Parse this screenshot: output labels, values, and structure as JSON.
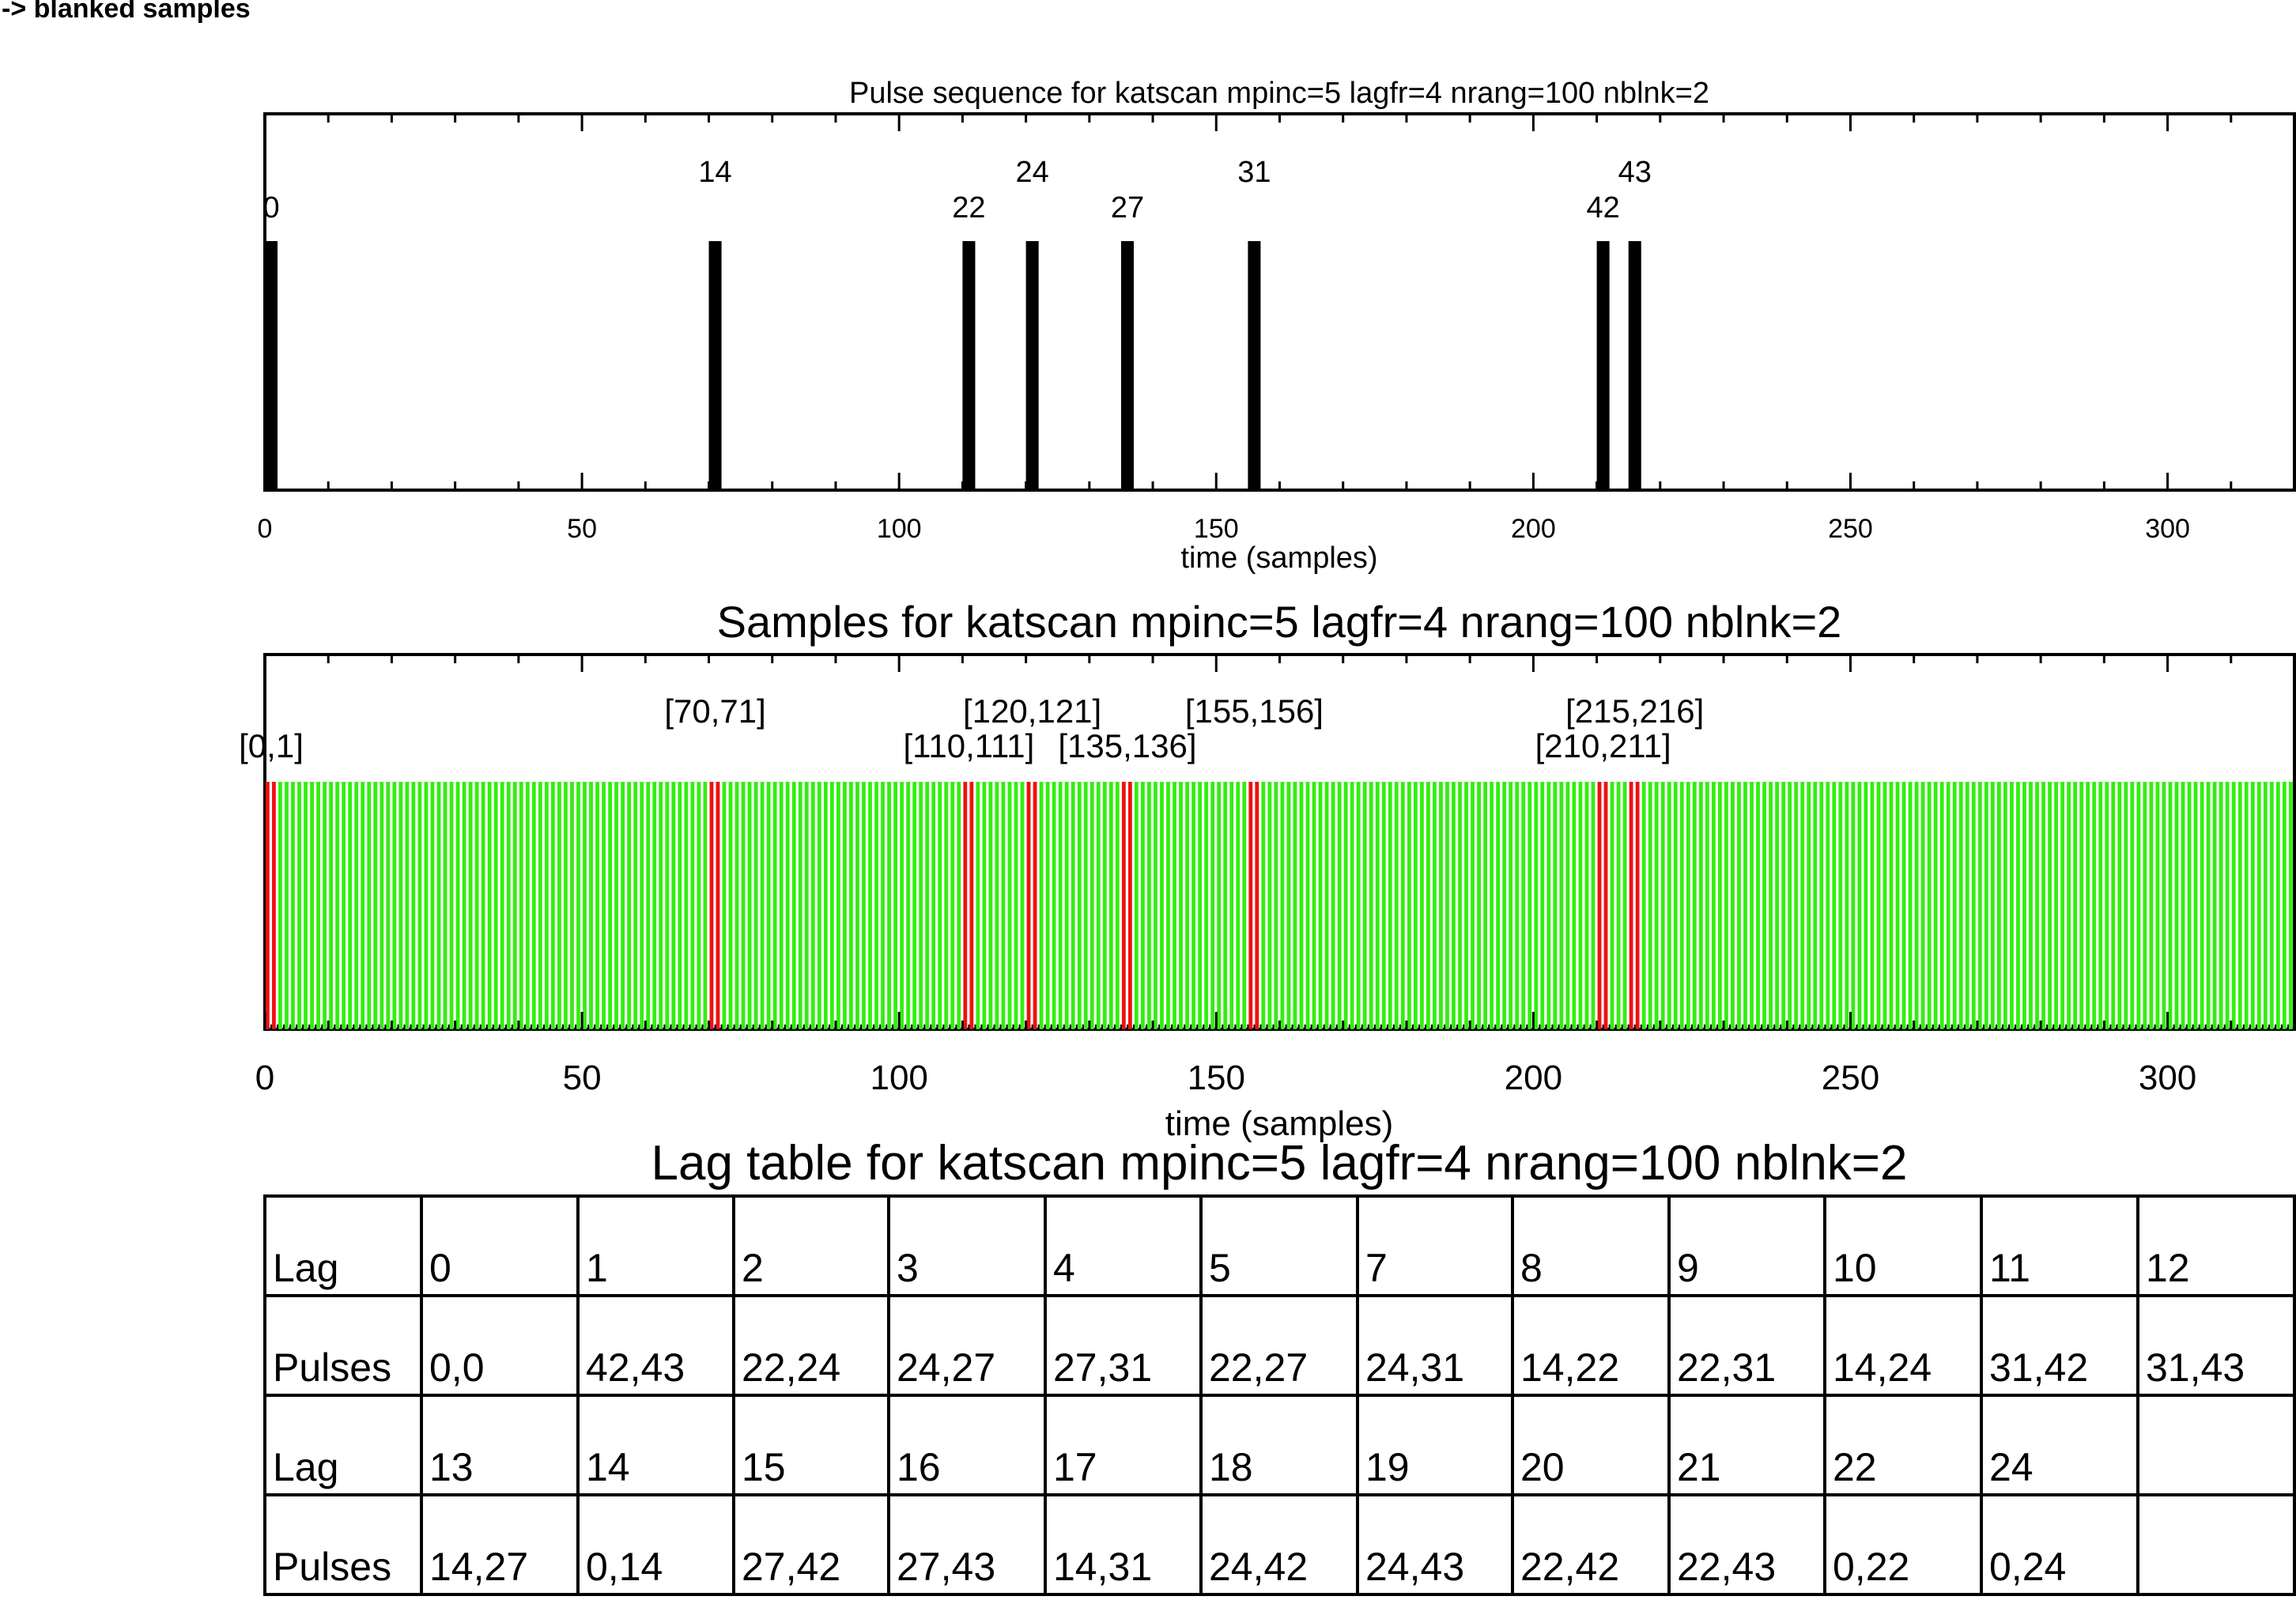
{
  "note": "-> blanked samples",
  "colors": {
    "pulse": "#000000",
    "sample": "#33ee11",
    "blanked": "#ee1111"
  },
  "chart_data": [
    {
      "type": "bar",
      "title": "Pulse sequence for katscan mpinc=5 lagfr=4 nrang=100 nblnk=2",
      "xlabel": "time (samples)",
      "xlim": [
        0,
        320
      ],
      "xticks": [
        0,
        50,
        100,
        150,
        200,
        250,
        300
      ],
      "pulses": [
        0,
        14,
        22,
        24,
        27,
        31,
        42,
        43
      ],
      "pulse_time_samples": [
        0,
        70,
        110,
        120,
        135,
        155,
        210,
        215
      ],
      "pulse_labels": [
        "0",
        "14",
        "22",
        "24",
        "27",
        "31",
        "42",
        "43"
      ],
      "pulse_width_samples": 2
    },
    {
      "type": "bar",
      "title": "Samples for katscan mpinc=5 lagfr=4 nrang=100 nblnk=2",
      "xlabel": "time (samples)",
      "xlim": [
        0,
        320
      ],
      "xticks": [
        0,
        50,
        100,
        150,
        200,
        250,
        300
      ],
      "n_samples": 320,
      "blanked_samples": [
        0,
        1,
        70,
        71,
        110,
        111,
        120,
        121,
        135,
        136,
        155,
        156,
        210,
        211,
        215,
        216
      ],
      "blank_labels": [
        "[0,1]",
        "[70,71]",
        "[110,111]",
        "[120,121]",
        "[135,136]",
        "[155,156]",
        "[210,211]",
        "[215,216]"
      ]
    },
    {
      "type": "table",
      "title": "Lag table for katscan mpinc=5 lagfr=4 nrang=100 nblnk=2",
      "rows": [
        [
          "Lag",
          "0",
          "1",
          "2",
          "3",
          "4",
          "5",
          "7",
          "8",
          "9",
          "10",
          "11",
          "12"
        ],
        [
          "Pulses",
          "0,0",
          "42,43",
          "22,24",
          "24,27",
          "27,31",
          "22,27",
          "24,31",
          "14,22",
          "22,31",
          "14,24",
          "31,42",
          "31,43"
        ],
        [
          "Lag",
          "13",
          "14",
          "15",
          "16",
          "17",
          "18",
          "19",
          "20",
          "21",
          "22",
          "24",
          ""
        ],
        [
          "Pulses",
          "14,27",
          "0,14",
          "27,42",
          "27,43",
          "14,31",
          "24,42",
          "24,43",
          "22,42",
          "22,43",
          "0,22",
          "0,24",
          ""
        ]
      ]
    }
  ]
}
